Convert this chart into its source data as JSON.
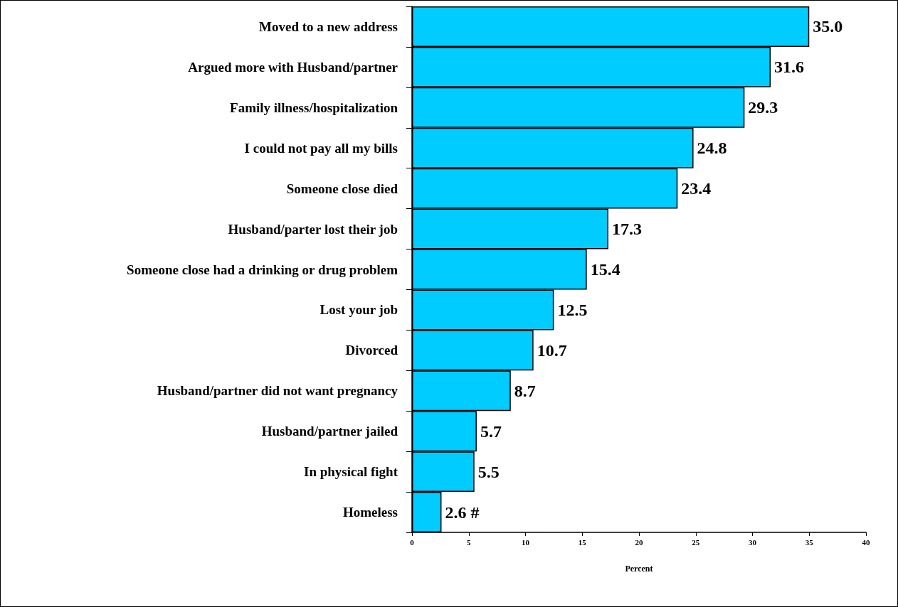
{
  "chart_data": {
    "type": "bar",
    "orientation": "horizontal",
    "xlabel": "Percent",
    "categories": [
      "Moved to a new address",
      "Argued more with Husband/partner",
      "Family illness/hospitalization",
      "I could not pay all my bills",
      "Someone close died",
      "Husband/parter lost their job",
      "Someone close had a drinking or drug problem",
      "Lost your job",
      "Divorced",
      "Husband/partner did not want pregnancy",
      "Husband/partner jailed",
      "In physical fight",
      "Homeless"
    ],
    "values": [
      35.0,
      31.6,
      29.3,
      24.8,
      23.4,
      17.3,
      15.4,
      12.5,
      10.7,
      8.7,
      5.7,
      5.5,
      2.6
    ],
    "value_labels": [
      "35.0",
      "31.6",
      "29.3",
      "24.8",
      "23.4",
      "17.3",
      "15.4",
      "12.5",
      "10.7",
      "8.7",
      "5.7",
      "5.5",
      "2.6 #"
    ],
    "color": "#00ccff",
    "xlim": [
      0,
      40
    ],
    "xticks": [
      0,
      5,
      10,
      15,
      20,
      25,
      30,
      35,
      40
    ],
    "grid": false
  }
}
